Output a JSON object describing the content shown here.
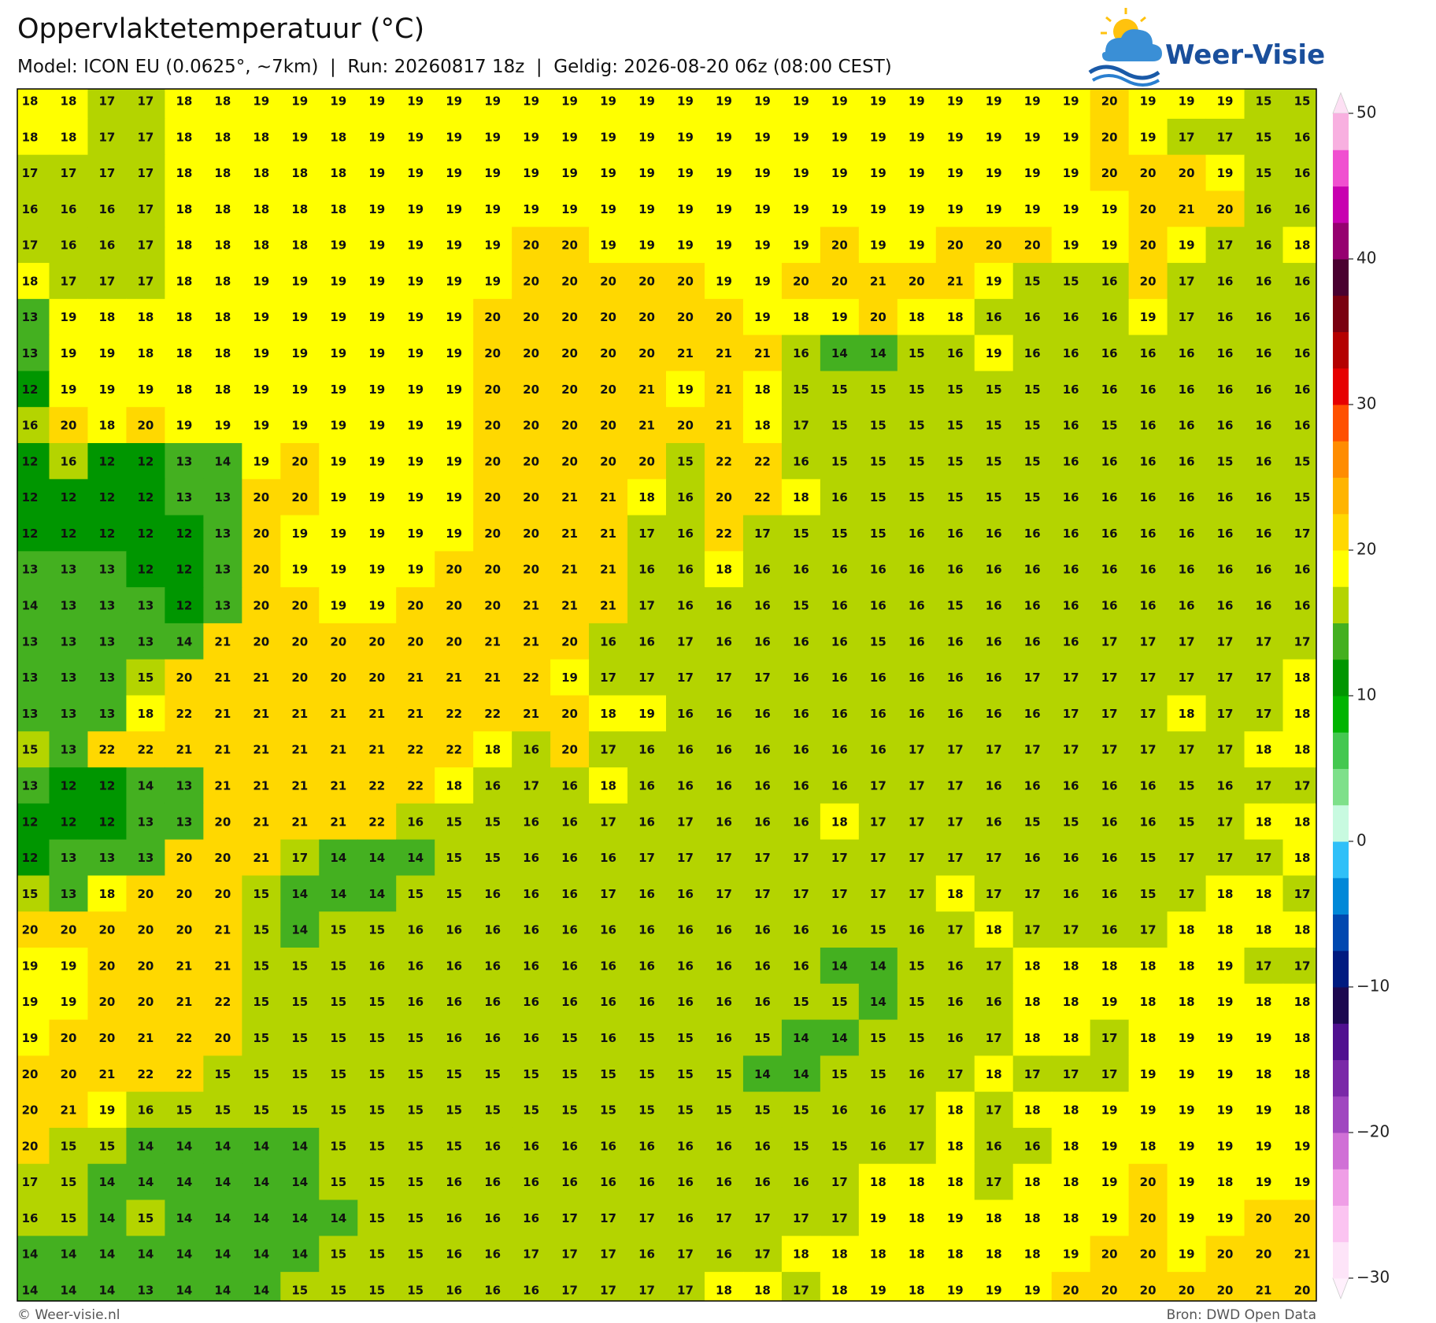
{
  "header": {
    "title": "Oppervlaktetemperatuur (°C)",
    "subtitle": "Model: ICON EU (0.0625°, ~7km)  |  Run: 20260817 18z  |  Geldig: 2026-08-20 06z (08:00 CEST)"
  },
  "logo": "Weer-Visie",
  "map": {
    "rows": [
      [
        18,
        18,
        17,
        17,
        18,
        18,
        19,
        19,
        19,
        19,
        19,
        19,
        19,
        19,
        19,
        19,
        19,
        19,
        19,
        19,
        19,
        19,
        19,
        19,
        19,
        19,
        19,
        19,
        20,
        19,
        19,
        19,
        15,
        15
      ],
      [
        18,
        18,
        17,
        17,
        18,
        18,
        18,
        19,
        18,
        19,
        19,
        19,
        19,
        19,
        19,
        19,
        19,
        19,
        19,
        19,
        19,
        19,
        19,
        19,
        19,
        19,
        19,
        19,
        20,
        19,
        17,
        17,
        15,
        16
      ],
      [
        17,
        17,
        17,
        17,
        18,
        18,
        18,
        18,
        18,
        19,
        19,
        19,
        19,
        19,
        19,
        19,
        19,
        19,
        19,
        19,
        19,
        19,
        19,
        19,
        19,
        19,
        19,
        19,
        20,
        20,
        20,
        19,
        15,
        16
      ],
      [
        16,
        16,
        16,
        17,
        18,
        18,
        18,
        18,
        18,
        19,
        19,
        19,
        19,
        19,
        19,
        19,
        19,
        19,
        19,
        19,
        19,
        19,
        19,
        19,
        19,
        19,
        19,
        19,
        19,
        20,
        21,
        20,
        16,
        16
      ],
      [
        17,
        16,
        16,
        17,
        18,
        18,
        18,
        18,
        19,
        19,
        19,
        19,
        19,
        20,
        20,
        19,
        19,
        19,
        19,
        19,
        19,
        20,
        19,
        19,
        20,
        20,
        20,
        19,
        19,
        20,
        19,
        17,
        16,
        18
      ],
      [
        18,
        17,
        17,
        17,
        18,
        18,
        19,
        19,
        19,
        19,
        19,
        19,
        19,
        20,
        20,
        20,
        20,
        20,
        19,
        19,
        20,
        20,
        21,
        20,
        21,
        19,
        15,
        15,
        16,
        20,
        17,
        16,
        16,
        16
      ],
      [
        13,
        19,
        18,
        18,
        18,
        18,
        19,
        19,
        19,
        19,
        19,
        19,
        20,
        20,
        20,
        20,
        20,
        20,
        20,
        19,
        18,
        19,
        20,
        18,
        18,
        16,
        16,
        16,
        16,
        19,
        17,
        16,
        16,
        16
      ],
      [
        13,
        19,
        19,
        18,
        18,
        18,
        19,
        19,
        19,
        19,
        19,
        19,
        20,
        20,
        20,
        20,
        20,
        21,
        21,
        21,
        16,
        14,
        14,
        15,
        16,
        19,
        16,
        16,
        16,
        16,
        16,
        16,
        16,
        16
      ],
      [
        12,
        19,
        19,
        19,
        18,
        18,
        19,
        19,
        19,
        19,
        19,
        19,
        20,
        20,
        20,
        20,
        21,
        19,
        21,
        18,
        15,
        15,
        15,
        15,
        15,
        15,
        15,
        16,
        16,
        16,
        16,
        16,
        16,
        16
      ],
      [
        16,
        20,
        18,
        20,
        19,
        19,
        19,
        19,
        19,
        19,
        19,
        19,
        20,
        20,
        20,
        20,
        21,
        20,
        21,
        18,
        17,
        15,
        15,
        15,
        15,
        15,
        15,
        16,
        15,
        16,
        16,
        16,
        16,
        16
      ],
      [
        12,
        16,
        12,
        12,
        13,
        14,
        19,
        20,
        19,
        19,
        19,
        19,
        20,
        20,
        20,
        20,
        20,
        15,
        22,
        22,
        16,
        15,
        15,
        15,
        15,
        15,
        15,
        16,
        16,
        16,
        16,
        15,
        16,
        15
      ],
      [
        12,
        12,
        12,
        12,
        13,
        13,
        20,
        20,
        19,
        19,
        19,
        19,
        20,
        20,
        21,
        21,
        18,
        16,
        20,
        22,
        18,
        16,
        15,
        15,
        15,
        15,
        15,
        16,
        16,
        16,
        16,
        16,
        16,
        15
      ],
      [
        12,
        12,
        12,
        12,
        12,
        13,
        20,
        19,
        19,
        19,
        19,
        19,
        20,
        20,
        21,
        21,
        17,
        16,
        22,
        17,
        15,
        15,
        15,
        16,
        16,
        16,
        16,
        16,
        16,
        16,
        16,
        16,
        16,
        17
      ],
      [
        13,
        13,
        13,
        12,
        12,
        13,
        20,
        19,
        19,
        19,
        19,
        20,
        20,
        20,
        21,
        21,
        16,
        16,
        18,
        16,
        16,
        16,
        16,
        16,
        16,
        16,
        16,
        16,
        16,
        16,
        16,
        16,
        16,
        16
      ],
      [
        14,
        13,
        13,
        13,
        12,
        13,
        20,
        20,
        19,
        19,
        20,
        20,
        20,
        21,
        21,
        21,
        17,
        16,
        16,
        16,
        15,
        16,
        16,
        16,
        15,
        16,
        16,
        16,
        16,
        16,
        16,
        16,
        16,
        16
      ],
      [
        13,
        13,
        13,
        13,
        14,
        21,
        20,
        20,
        20,
        20,
        20,
        20,
        21,
        21,
        20,
        16,
        16,
        17,
        16,
        16,
        16,
        16,
        15,
        16,
        16,
        16,
        16,
        16,
        17,
        17,
        17,
        17,
        17,
        17
      ],
      [
        13,
        13,
        13,
        15,
        20,
        21,
        21,
        20,
        20,
        20,
        21,
        21,
        21,
        22,
        19,
        17,
        17,
        17,
        17,
        17,
        16,
        16,
        16,
        16,
        16,
        16,
        17,
        17,
        17,
        17,
        17,
        17,
        17,
        18
      ],
      [
        13,
        13,
        13,
        18,
        22,
        21,
        21,
        21,
        21,
        21,
        21,
        22,
        22,
        21,
        20,
        18,
        19,
        16,
        16,
        16,
        16,
        16,
        16,
        16,
        16,
        16,
        16,
        17,
        17,
        17,
        18,
        17,
        17,
        18
      ],
      [
        15,
        13,
        22,
        22,
        21,
        21,
        21,
        21,
        21,
        21,
        22,
        22,
        18,
        16,
        20,
        17,
        16,
        16,
        16,
        16,
        16,
        16,
        16,
        17,
        17,
        17,
        17,
        17,
        17,
        17,
        17,
        17,
        18,
        18
      ],
      [
        13,
        12,
        12,
        14,
        13,
        21,
        21,
        21,
        21,
        22,
        22,
        18,
        16,
        17,
        16,
        18,
        16,
        16,
        16,
        16,
        16,
        16,
        17,
        17,
        17,
        16,
        16,
        16,
        16,
        16,
        15,
        16,
        17,
        17
      ],
      [
        12,
        12,
        12,
        13,
        13,
        20,
        21,
        21,
        21,
        22,
        16,
        15,
        15,
        16,
        16,
        17,
        16,
        17,
        16,
        16,
        16,
        18,
        17,
        17,
        17,
        16,
        15,
        15,
        16,
        16,
        15,
        17,
        18,
        18
      ],
      [
        12,
        13,
        13,
        13,
        20,
        20,
        21,
        17,
        14,
        14,
        14,
        15,
        15,
        16,
        16,
        16,
        17,
        17,
        17,
        17,
        17,
        17,
        17,
        17,
        17,
        17,
        16,
        16,
        16,
        15,
        17,
        17,
        17,
        18
      ],
      [
        15,
        13,
        18,
        20,
        20,
        20,
        15,
        14,
        14,
        14,
        15,
        15,
        16,
        16,
        16,
        17,
        16,
        16,
        17,
        17,
        17,
        17,
        17,
        17,
        18,
        17,
        17,
        16,
        16,
        15,
        17,
        18,
        18,
        17
      ],
      [
        20,
        20,
        20,
        20,
        20,
        21,
        15,
        14,
        15,
        15,
        16,
        16,
        16,
        16,
        16,
        16,
        16,
        16,
        16,
        16,
        16,
        16,
        15,
        16,
        17,
        18,
        17,
        17,
        16,
        17,
        18,
        18,
        18,
        18
      ],
      [
        19,
        19,
        20,
        20,
        21,
        21,
        15,
        15,
        15,
        16,
        16,
        16,
        16,
        16,
        16,
        16,
        16,
        16,
        16,
        16,
        16,
        14,
        14,
        15,
        16,
        17,
        18,
        18,
        18,
        18,
        18,
        19,
        17,
        17
      ],
      [
        19,
        19,
        20,
        20,
        21,
        22,
        15,
        15,
        15,
        15,
        16,
        16,
        16,
        16,
        16,
        16,
        16,
        16,
        16,
        16,
        15,
        15,
        14,
        15,
        16,
        16,
        18,
        18,
        19,
        18,
        18,
        19,
        18,
        18
      ],
      [
        19,
        20,
        20,
        21,
        22,
        20,
        15,
        15,
        15,
        15,
        15,
        16,
        16,
        16,
        15,
        16,
        15,
        15,
        16,
        15,
        14,
        14,
        15,
        15,
        16,
        17,
        18,
        18,
        17,
        18,
        19,
        19,
        19,
        18
      ],
      [
        20,
        20,
        21,
        22,
        22,
        15,
        15,
        15,
        15,
        15,
        15,
        15,
        15,
        15,
        15,
        15,
        15,
        15,
        15,
        14,
        14,
        15,
        15,
        16,
        17,
        18,
        17,
        17,
        17,
        19,
        19,
        19,
        18,
        18
      ],
      [
        20,
        21,
        19,
        16,
        15,
        15,
        15,
        15,
        15,
        15,
        15,
        15,
        15,
        15,
        15,
        15,
        15,
        15,
        15,
        15,
        15,
        16,
        16,
        17,
        18,
        17,
        18,
        18,
        19,
        19,
        19,
        19,
        19,
        18
      ],
      [
        20,
        15,
        15,
        14,
        14,
        14,
        14,
        14,
        15,
        15,
        15,
        15,
        16,
        16,
        16,
        16,
        16,
        16,
        16,
        16,
        15,
        15,
        16,
        17,
        18,
        16,
        16,
        18,
        19,
        18,
        19,
        19,
        19,
        19
      ],
      [
        17,
        15,
        14,
        14,
        14,
        14,
        14,
        14,
        15,
        15,
        15,
        16,
        16,
        16,
        16,
        16,
        16,
        16,
        16,
        16,
        16,
        17,
        18,
        18,
        18,
        17,
        18,
        18,
        19,
        20,
        19,
        18,
        19,
        19
      ],
      [
        16,
        15,
        14,
        15,
        14,
        14,
        14,
        14,
        14,
        15,
        15,
        16,
        16,
        16,
        17,
        17,
        17,
        16,
        17,
        17,
        17,
        17,
        19,
        18,
        19,
        18,
        18,
        18,
        19,
        20,
        19,
        19,
        20,
        20
      ],
      [
        14,
        14,
        14,
        14,
        14,
        14,
        14,
        14,
        15,
        15,
        15,
        16,
        16,
        17,
        17,
        17,
        16,
        17,
        16,
        17,
        18,
        18,
        18,
        18,
        18,
        18,
        18,
        19,
        20,
        20,
        19,
        20,
        20,
        21
      ],
      [
        14,
        14,
        14,
        13,
        14,
        14,
        14,
        15,
        15,
        15,
        15,
        16,
        16,
        16,
        17,
        17,
        17,
        17,
        18,
        18,
        17,
        18,
        19,
        18,
        19,
        19,
        19,
        20,
        20,
        20,
        20,
        20,
        21,
        20
      ]
    ]
  },
  "colorbar": {
    "lim": [
      -30,
      50
    ],
    "colors": [
      "#fde4f8",
      "#fbc4f1",
      "#ef9ee6",
      "#d070d6",
      "#a046c0",
      "#7a28a8",
      "#501090",
      "#1c0850",
      "#001a80",
      "#0048b0",
      "#0088d8",
      "#30c0f8",
      "#c8fae0",
      "#7ee08a",
      "#44c850",
      "#00b400",
      "#009600",
      "#44b020",
      "#b4d400",
      "#ffff00",
      "#ffd800",
      "#ffb400",
      "#ff8c00",
      "#ff5000",
      "#e60000",
      "#b40000",
      "#7a0010",
      "#4a0030",
      "#960070",
      "#c800b0",
      "#f050d0",
      "#f8b0e0"
    ],
    "ticks": [
      {
        "value": -30,
        "label": "−30"
      },
      {
        "value": -20,
        "label": "−20"
      },
      {
        "value": -10,
        "label": "−10"
      },
      0,
      10,
      20,
      30,
      40,
      50
    ]
  },
  "footer": {
    "left": "© Weer-visie.nl",
    "right": "Bron: DWD Open Data"
  }
}
